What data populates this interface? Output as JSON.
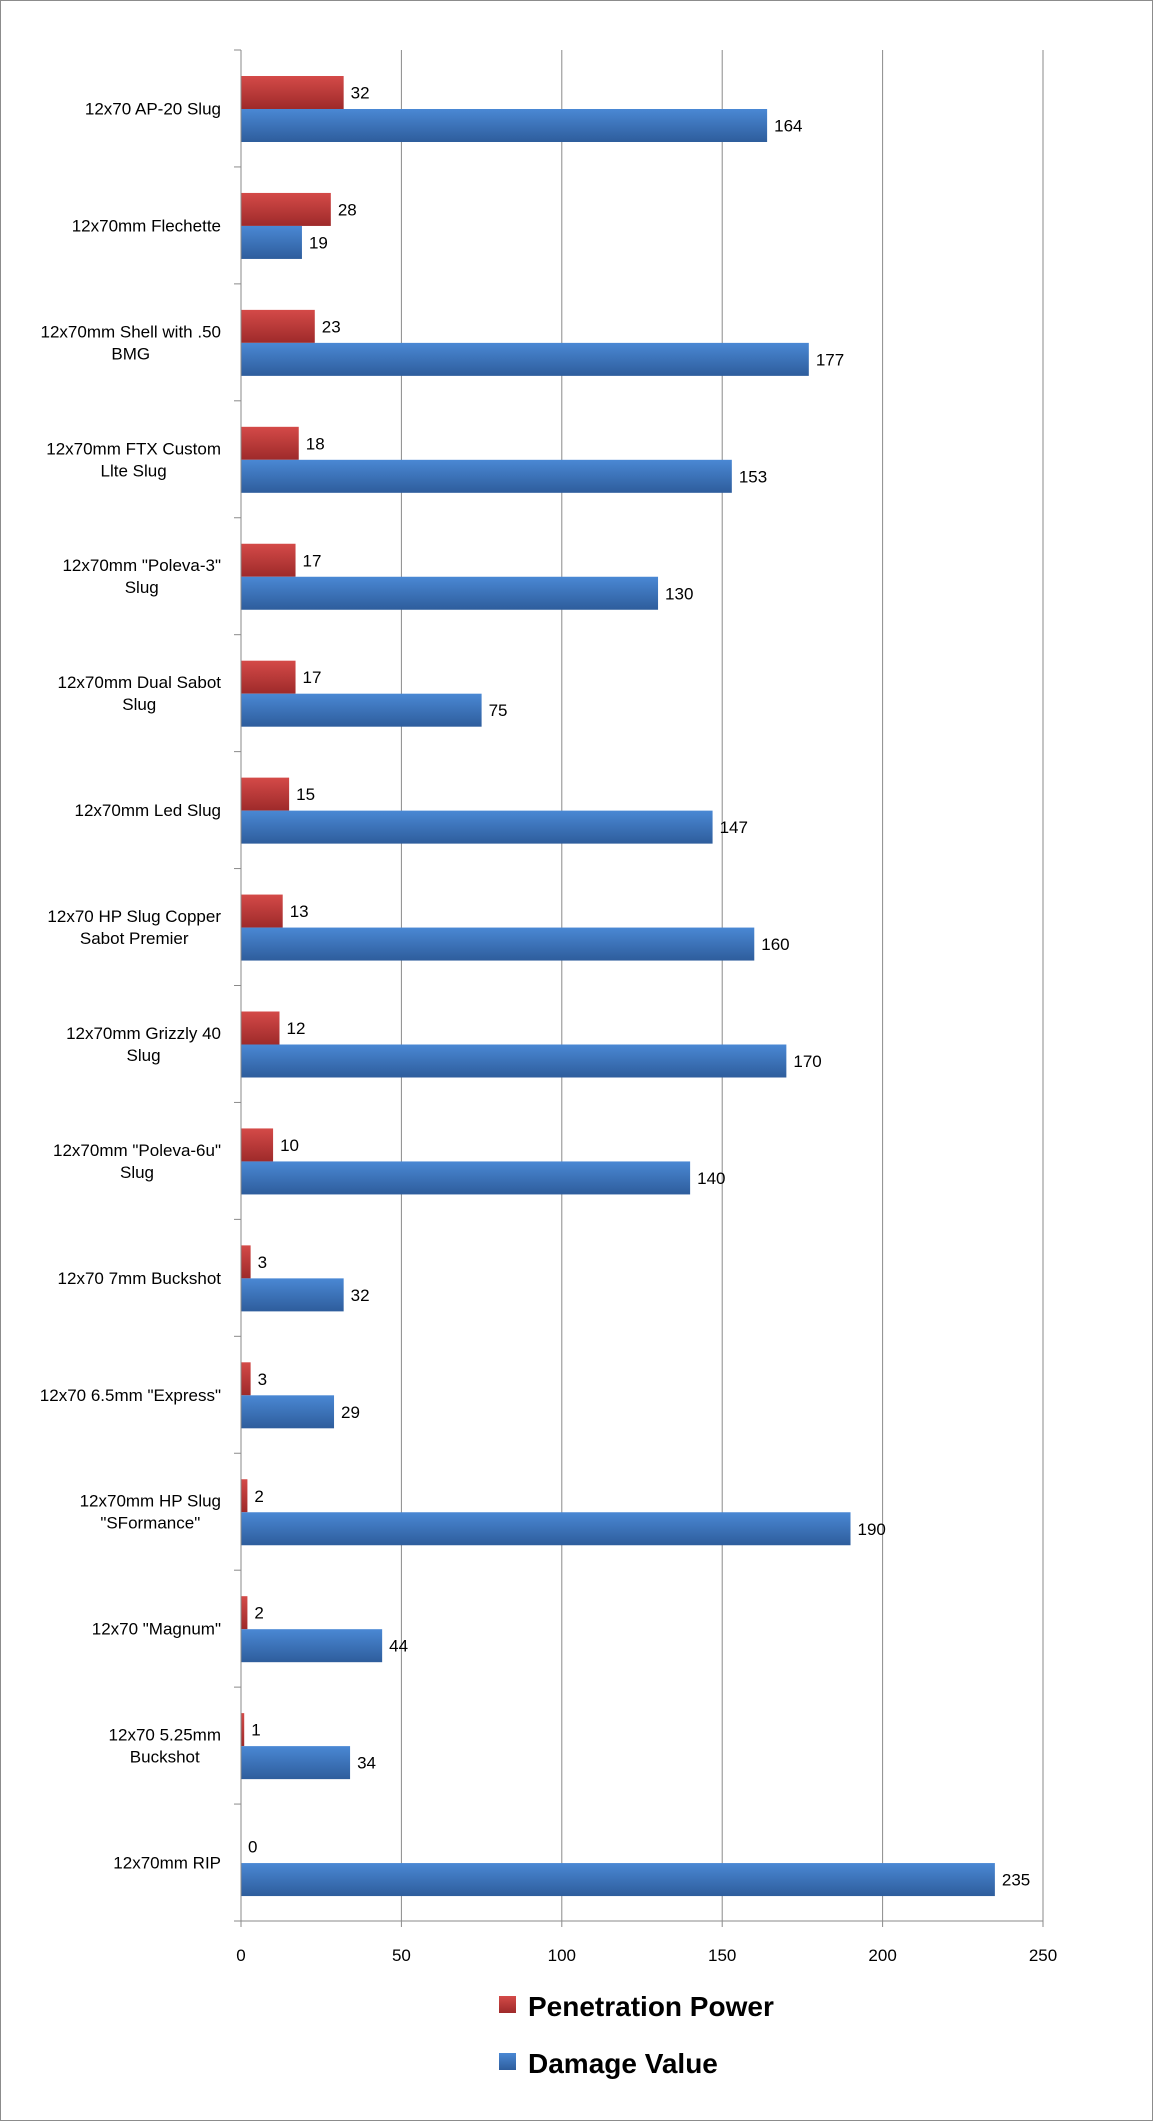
{
  "chart_data": {
    "type": "bar",
    "orientation": "horizontal",
    "title": "",
    "xlabel": "",
    "ylabel": "",
    "xlim": [
      0,
      250
    ],
    "xticks": [
      0,
      50,
      100,
      150,
      200,
      250
    ],
    "grid": "vertical major gridlines",
    "legend_placement": "bottom",
    "categories": [
      [
        "12x70 AP-20 Slug"
      ],
      [
        "12x70mm Flechette"
      ],
      [
        "12x70mm Shell with .50",
        "BMG"
      ],
      [
        "12x70mm FTX Custom",
        "Llte Slug"
      ],
      [
        "12x70mm \"Poleva-3\"",
        "Slug"
      ],
      [
        "12x70mm Dual Sabot",
        "Slug"
      ],
      [
        "12x70mm Led Slug"
      ],
      [
        "12x70 HP Slug Copper",
        "Sabot Premier"
      ],
      [
        "12x70mm Grizzly 40",
        "Slug"
      ],
      [
        "12x70mm \"Poleva-6u\"",
        "Slug"
      ],
      [
        "12x70 7mm Buckshot"
      ],
      [
        "12x70 6.5mm \"Express\""
      ],
      [
        "12x70mm HP Slug",
        "\"SFormance\""
      ],
      [
        "12x70 \"Magnum\""
      ],
      [
        "12x70 5.25mm",
        "Buckshot"
      ],
      [
        "12x70mm RIP"
      ]
    ],
    "series": [
      {
        "name": "Penetration Power",
        "color": "#c0393a",
        "values": [
          32,
          28,
          23,
          18,
          17,
          17,
          15,
          13,
          12,
          10,
          3,
          3,
          2,
          2,
          1,
          0
        ]
      },
      {
        "name": "Damage Value",
        "color": "#3d74c0",
        "values": [
          164,
          19,
          177,
          153,
          130,
          75,
          147,
          160,
          170,
          140,
          32,
          29,
          190,
          44,
          34,
          235
        ]
      }
    ]
  }
}
